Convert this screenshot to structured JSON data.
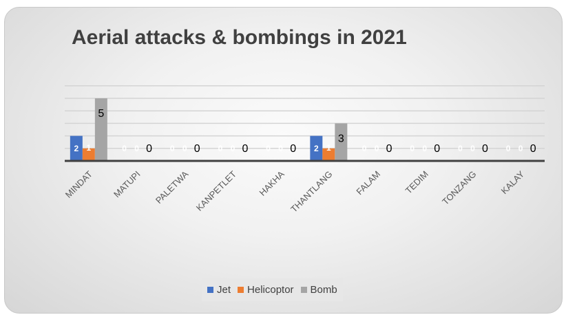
{
  "chart_data": {
    "type": "bar",
    "title": "Aerial attacks & bombings in 2021",
    "categories": [
      "MINDAT",
      "MATUPI",
      "PALETWA",
      "KANPETLET",
      "HAKHA",
      "THANTLANG",
      "FALAM",
      "TEDIM",
      "TONZANG",
      "KALAY"
    ],
    "series": [
      {
        "name": "Jet",
        "color": "#4472C4",
        "values": [
          2,
          0,
          0,
          0,
          0,
          2,
          0,
          0,
          0,
          0
        ]
      },
      {
        "name": "Helicoptor",
        "color": "#ED7D31",
        "values": [
          1,
          0,
          0,
          0,
          0,
          1,
          0,
          0,
          0,
          0
        ]
      },
      {
        "name": "Bomb",
        "color": "#A5A5A5",
        "values": [
          5,
          0,
          0,
          0,
          0,
          3,
          0,
          0,
          0,
          0
        ]
      }
    ],
    "ylim": [
      0,
      6
    ],
    "grid": true,
    "legend_position": "bottom",
    "data_labels": true
  }
}
